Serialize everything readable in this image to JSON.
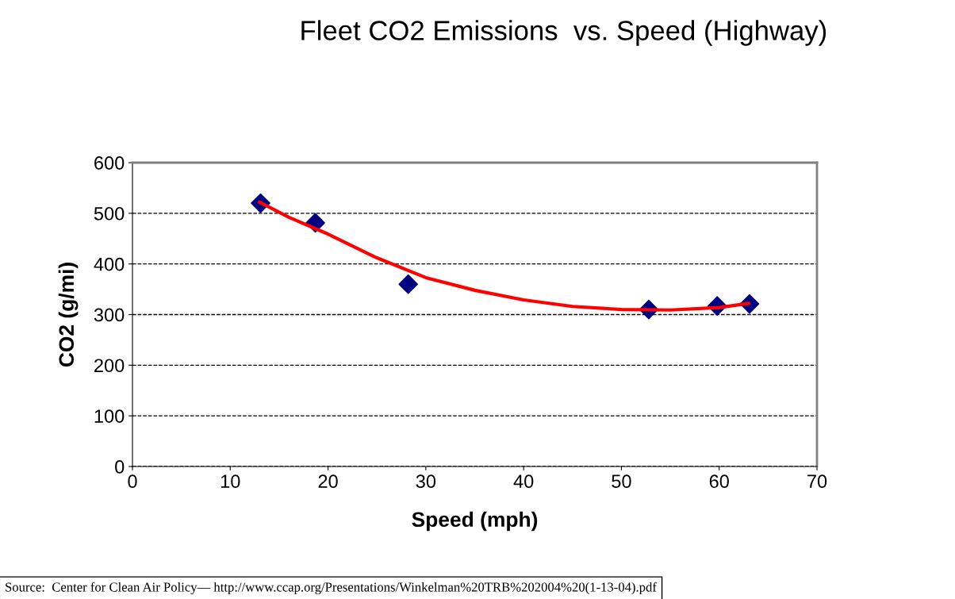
{
  "chart_data": {
    "type": "scatter",
    "title": "Fleet CO2 Emissions  vs. Speed (Highway)",
    "xlabel": "Speed (mph)",
    "ylabel": "CO2 (g/mi)",
    "xlim": [
      0,
      70
    ],
    "xticks": [
      0,
      10,
      20,
      30,
      40,
      50,
      60,
      70
    ],
    "ylim": [
      0,
      600
    ],
    "yticks": [
      0,
      100,
      200,
      300,
      400,
      500,
      600
    ],
    "grid": "y",
    "legend": false,
    "series": [
      {
        "type": "line",
        "color": "#ff0000",
        "marker": "none",
        "line_style": "solid",
        "x": [
          13,
          16,
          20,
          25,
          30,
          35,
          40,
          45,
          50,
          55,
          60,
          63
        ],
        "values": [
          522,
          492,
          459,
          412,
          373,
          348,
          329,
          316,
          310,
          309,
          314,
          322
        ]
      },
      {
        "color": "#000080",
        "marker": "diamond",
        "x": [
          13.1,
          18.7,
          28.2,
          52.8,
          59.8,
          63.1
        ],
        "values": [
          520,
          481,
          360,
          310,
          317,
          321
        ]
      }
    ],
    "annotations": [
      "Source:  Center for Clean Air Policy— http://www.ccap.org/Presentations/Winkelman%20TRB%202004%20(1-13-04).pdf"
    ]
  }
}
